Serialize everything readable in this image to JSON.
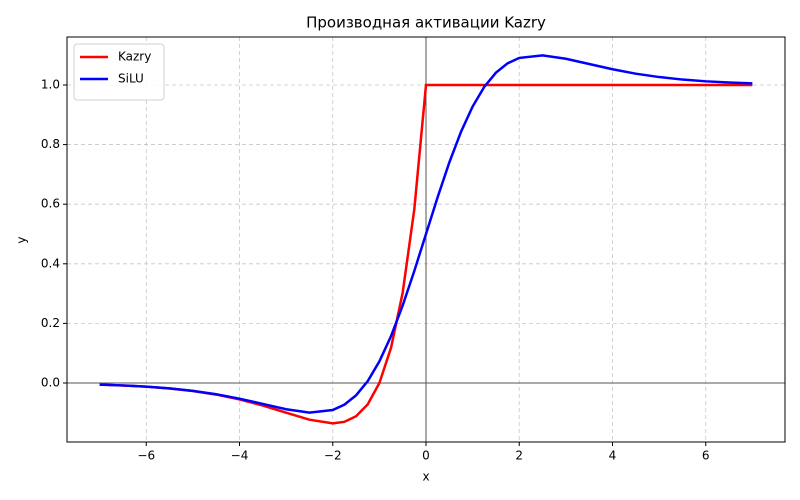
{
  "chart_data": {
    "type": "line",
    "title": "Производная активации Kazry",
    "xlabel": "x",
    "ylabel": "y",
    "x": [
      -7,
      -6.5,
      -6,
      -5.5,
      -5,
      -4.5,
      -4,
      -3.5,
      -3,
      -2.5,
      -2,
      -1.75,
      -1.5,
      -1.25,
      -1,
      -0.75,
      -0.5,
      -0.25,
      0,
      0.25,
      0.5,
      0.75,
      1,
      1.25,
      1.5,
      1.75,
      2,
      2.5,
      3,
      3.5,
      4,
      4.5,
      5,
      5.5,
      6,
      6.5,
      7
    ],
    "series": [
      {
        "name": "Kazry",
        "color": "#ff0000",
        "values": [
          -0.0055,
          -0.0083,
          -0.0124,
          -0.0184,
          -0.027,
          -0.0389,
          -0.0549,
          -0.0755,
          -0.0996,
          -0.1231,
          -0.1353,
          -0.1303,
          -0.1116,
          -0.0716,
          0,
          0.1181,
          0.3033,
          0.5841,
          1,
          1,
          1,
          1,
          1,
          1,
          1,
          1,
          1,
          1,
          1,
          1,
          1,
          1,
          1,
          1,
          1,
          1,
          1
        ]
      },
      {
        "name": "SiLU",
        "color": "#0000ff",
        "values": [
          -0.0055,
          -0.0082,
          -0.0123,
          -0.0182,
          -0.0266,
          -0.0379,
          -0.0527,
          -0.0703,
          -0.0881,
          -0.0994,
          -0.0908,
          -0.0727,
          -0.0413,
          0.0063,
          0.0723,
          0.1574,
          0.26,
          0.3763,
          0.5,
          0.6237,
          0.74,
          0.8426,
          0.9277,
          0.9937,
          1.0413,
          1.0727,
          1.0908,
          1.0994,
          1.0881,
          1.0703,
          1.0527,
          1.0379,
          1.0266,
          1.0182,
          1.0123,
          1.0082,
          1.0055
        ]
      }
    ],
    "xlim": [
      -7.7,
      7.7
    ],
    "ylim": [
      -0.198,
      1.161
    ],
    "xticks": [
      {
        "value": -6,
        "label": "−6"
      },
      {
        "value": -4,
        "label": "−4"
      },
      {
        "value": -2,
        "label": "−2"
      },
      0,
      2,
      4,
      6
    ],
    "yticks": [
      {
        "value": 0,
        "label": "0.0"
      },
      {
        "value": 0.2,
        "label": "0.2"
      },
      {
        "value": 0.4,
        "label": "0.4"
      },
      {
        "value": 0.6,
        "label": "0.6"
      },
      {
        "value": 0.8,
        "label": "0.8"
      },
      {
        "value": 1,
        "label": "1.0"
      }
    ],
    "grid": true,
    "legend": "upper left"
  }
}
